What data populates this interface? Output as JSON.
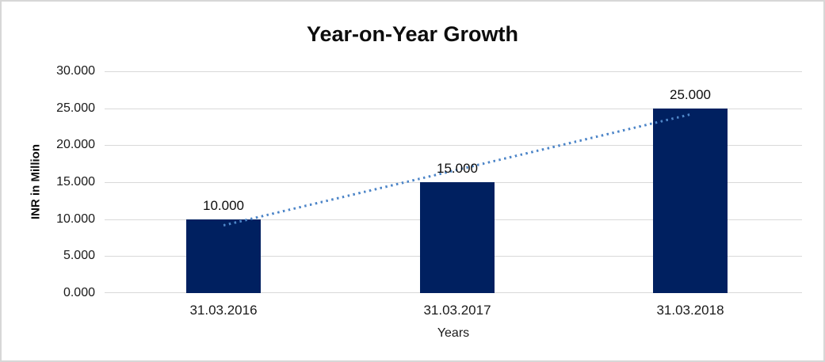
{
  "chart_data": {
    "type": "bar",
    "title": "Year-on-Year Growth",
    "xlabel": "Years",
    "ylabel": "INR in Million",
    "categories": [
      "31.03.2016",
      "31.03.2017",
      "31.03.2018"
    ],
    "values": [
      10000,
      15000,
      25000
    ],
    "value_labels": [
      "10.000",
      "15.000",
      "25.000"
    ],
    "y_ticks": [
      "30.000",
      "25.000",
      "20.000",
      "15.000",
      "10.000",
      "5.000",
      "0.000"
    ],
    "ylim": [
      0,
      30000
    ],
    "grid": true,
    "legend": false,
    "bar_color": "#002060",
    "gridline_color": "#d9d9d9",
    "frame_color": "#d7d7d7",
    "trendline": {
      "type": "linear",
      "style": "dotted",
      "color": "#4e86c8",
      "endpoint_values": [
        9167,
        24167
      ]
    }
  }
}
